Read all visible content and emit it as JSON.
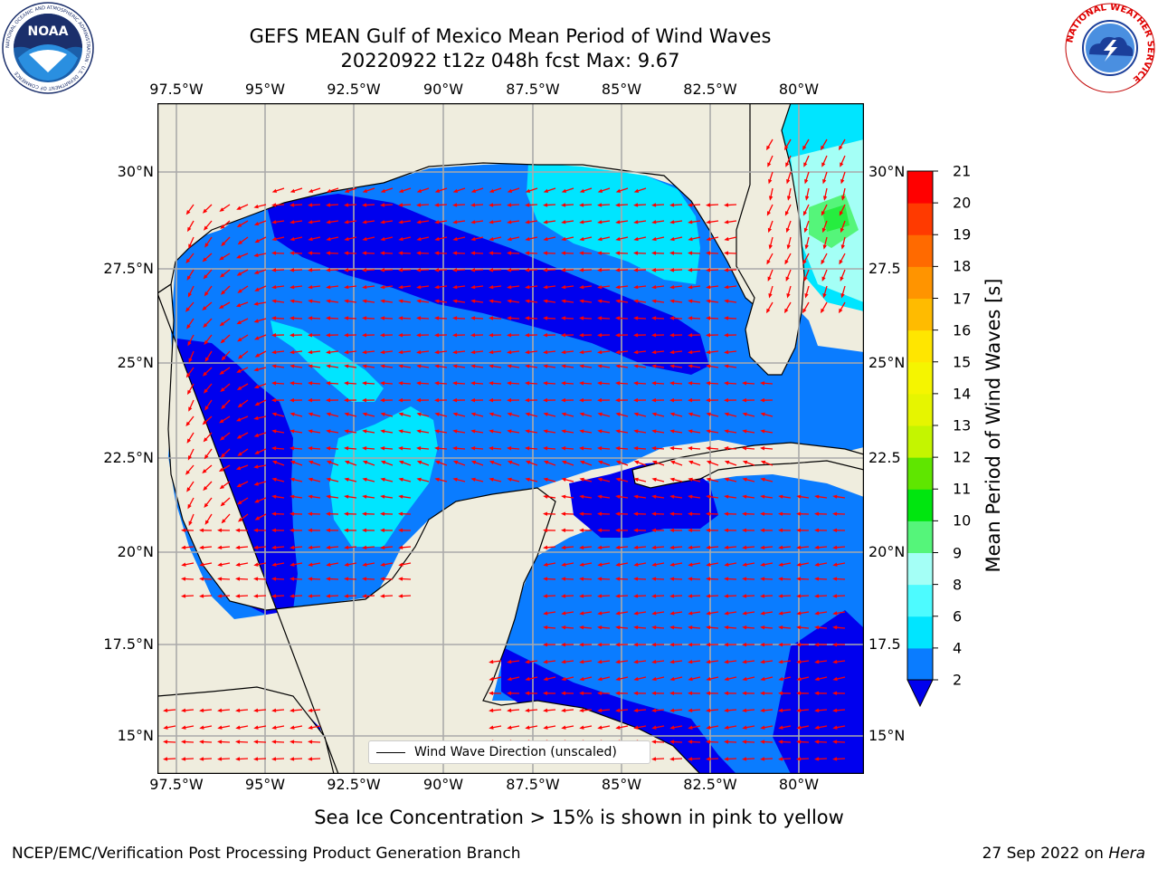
{
  "title": {
    "line1": "GEFS MEAN Gulf of Mexico Mean Period of Wind Waves",
    "line2": "20220922 t12z 048h fcst   Max: 9.67"
  },
  "map": {
    "lon_labels": [
      "97.5°W",
      "95°W",
      "92.5°W",
      "90°W",
      "87.5°W",
      "85°W",
      "82.5°W",
      "80°W"
    ],
    "lat_labels_left": [
      "30°N",
      "27.5°N",
      "25°N",
      "22.5°N",
      "20°N",
      "17.5°N",
      "15°N"
    ],
    "lat_labels_right": [
      "30°N",
      "27.5",
      "25°N",
      "22.5",
      "20°N",
      "17.5",
      "15°N"
    ],
    "land_color": "#efedde",
    "legend_label": "Wind Wave Direction (unscaled)",
    "arrow_color": "#ff0000"
  },
  "colorbar": {
    "label": "Mean Period of Wind Waves [s]",
    "ticks": [
      "2",
      "4",
      "6",
      "8",
      "9",
      "10",
      "11",
      "12",
      "13",
      "14",
      "15",
      "16",
      "17",
      "18",
      "19",
      "20",
      "21"
    ],
    "colors": [
      "#0a7cff",
      "#00e5ff",
      "#4dfbff",
      "#a4fff6",
      "#55f57a",
      "#00e60f",
      "#5fe600",
      "#c4f500",
      "#e6f500",
      "#f5f500",
      "#ffe600",
      "#ffbb00",
      "#ff9400",
      "#ff6a00",
      "#ff3a00",
      "#ff0000"
    ],
    "under_color": "#0000ee"
  },
  "caption": "Sea Ice Concentration > 15% is shown in pink to yellow",
  "footer": {
    "left": "NCEP/EMC/Verification Post Processing Product Generation Branch",
    "date": "27 Sep 2022 on ",
    "host": "Hera"
  },
  "logos": {
    "noaa_text": "NOAA",
    "noaa_ring": "NATIONAL OCEANIC AND ATMOSPHERIC ADMINISTRATION · U.S. DEPARTMENT OF COMMERCE",
    "nws_ring": "NATIONAL WEATHER SERVICE"
  }
}
